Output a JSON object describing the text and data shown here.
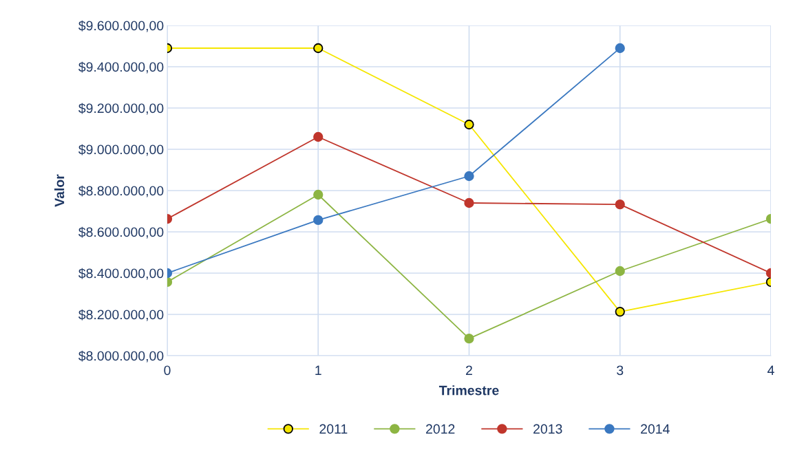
{
  "chart_data": {
    "type": "line",
    "xlabel": "Trimestre",
    "ylabel": "Valor",
    "x": [
      0,
      1,
      2,
      3,
      4
    ],
    "series": [
      {
        "name": "2011",
        "color": "#f5e600",
        "values": [
          9490000,
          9490000,
          9120000,
          8213000,
          8357000
        ]
      },
      {
        "name": "2012",
        "color": "#8db543",
        "values": [
          8357000,
          8780000,
          8083000,
          8410000,
          8663000
        ]
      },
      {
        "name": "2013",
        "color": "#c0362c",
        "values": [
          8663000,
          9060000,
          8740000,
          8733000,
          8400000
        ]
      },
      {
        "name": "2014",
        "color": "#3a78c0",
        "values": [
          8400000,
          8657000,
          8870000,
          9490000,
          null
        ]
      }
    ],
    "xlim": [
      0,
      4
    ],
    "xticks": [
      0,
      1,
      2,
      3,
      4
    ],
    "ylim": [
      8000000,
      9600000
    ],
    "yticks": [
      {
        "value": 8000000,
        "label": "$8.000.000,00"
      },
      {
        "value": 8200000,
        "label": "$8.200.000,00"
      },
      {
        "value": 8400000,
        "label": "$8.400.000,00"
      },
      {
        "value": 8600000,
        "label": "$8.600.000,00"
      },
      {
        "value": 8800000,
        "label": "$8.800.000,00"
      },
      {
        "value": 9000000,
        "label": "$9.000.000,00"
      },
      {
        "value": 9200000,
        "label": "$9.200.000,00"
      },
      {
        "value": 9400000,
        "label": "$9.400.000,00"
      },
      {
        "value": 9600000,
        "label": "$9.600.000,00"
      }
    ],
    "grid": true,
    "legend": "bottom",
    "marker": "circle",
    "line_style": "solid"
  }
}
